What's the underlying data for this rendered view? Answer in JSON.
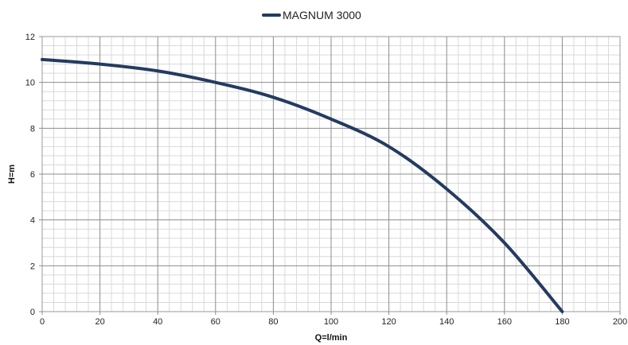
{
  "chart_data": {
    "type": "line",
    "title": "",
    "xlabel": "Q=l/min",
    "ylabel": "H=m",
    "xlim": [
      0,
      200
    ],
    "ylim": [
      0,
      12
    ],
    "x_ticks": [
      "0",
      "20",
      "40",
      "60",
      "80",
      "100",
      "120",
      "140",
      "160",
      "180",
      "200"
    ],
    "y_ticks": [
      "0",
      "2",
      "4",
      "6",
      "8",
      "10",
      "12"
    ],
    "grid": true,
    "minor_grid": true,
    "legend_position": "top-center",
    "series": [
      {
        "name": "MAGNUM 3000",
        "color": "#243b61",
        "x": [
          0,
          20,
          40,
          60,
          80,
          100,
          120,
          140,
          160,
          180
        ],
        "y": [
          11.0,
          10.8,
          10.5,
          10.0,
          9.35,
          8.4,
          7.2,
          5.35,
          3.0,
          0.0
        ]
      }
    ]
  }
}
